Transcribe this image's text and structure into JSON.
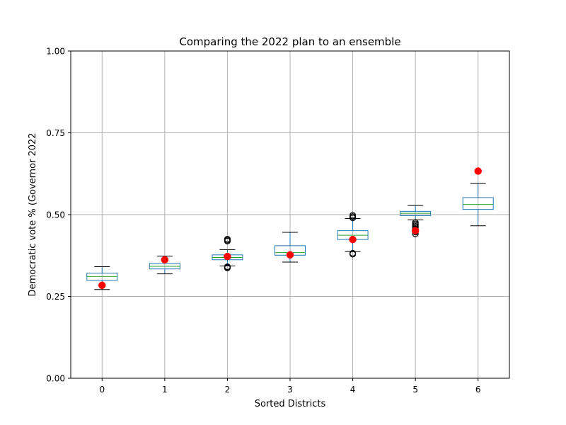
{
  "chart_data": {
    "type": "box",
    "title": "Comparing the 2022 plan to an ensemble",
    "xlabel": "Sorted Districts",
    "ylabel": "Democratic vote % (Governor 2022",
    "categories": [
      "0",
      "1",
      "2",
      "3",
      "4",
      "5",
      "6"
    ],
    "ylim": [
      0,
      1
    ],
    "yticks": [
      0,
      0.25,
      0.5,
      0.75,
      1
    ],
    "ytick_labels": [
      "0.00",
      "0.25",
      "0.50",
      "0.75",
      "1.00"
    ],
    "grid": true,
    "colors": {
      "box": "#1f77b4",
      "median": "#2ca02c",
      "whisker_cap": "#000000",
      "plan_marker": "#ff0000",
      "grid": "#b0b0b0"
    },
    "boxes": [
      {
        "district": "0",
        "whisker_low": 0.271,
        "q1": 0.299,
        "median": 0.311,
        "q3": 0.321,
        "whisker_high": 0.341,
        "outliers": []
      },
      {
        "district": "1",
        "whisker_low": 0.319,
        "q1": 0.334,
        "median": 0.342,
        "q3": 0.351,
        "whisker_high": 0.373,
        "outliers": []
      },
      {
        "district": "2",
        "whisker_low": 0.343,
        "q1": 0.362,
        "median": 0.369,
        "q3": 0.377,
        "whisker_high": 0.393,
        "outliers": [
          0.337,
          0.339,
          0.341,
          0.419,
          0.422,
          0.425
        ]
      },
      {
        "district": "3",
        "whisker_low": 0.355,
        "q1": 0.376,
        "median": 0.384,
        "q3": 0.405,
        "whisker_high": 0.446,
        "outliers": []
      },
      {
        "district": "4",
        "whisker_low": 0.387,
        "q1": 0.424,
        "median": 0.437,
        "q3": 0.451,
        "whisker_high": 0.488,
        "outliers": [
          0.379,
          0.382,
          0.49,
          0.494,
          0.498
        ]
      },
      {
        "district": "5",
        "whisker_low": 0.484,
        "q1": 0.497,
        "median": 0.504,
        "q3": 0.51,
        "whisker_high": 0.528,
        "outliers": [
          0.441,
          0.447,
          0.452,
          0.456,
          0.46,
          0.464,
          0.468,
          0.472,
          0.476
        ]
      },
      {
        "district": "6",
        "whisker_low": 0.466,
        "q1": 0.516,
        "median": 0.531,
        "q3": 0.552,
        "whisker_high": 0.595,
        "outliers": []
      }
    ],
    "plan_values": [
      0.284,
      0.362,
      0.372,
      0.377,
      0.424,
      0.451,
      0.633
    ]
  }
}
